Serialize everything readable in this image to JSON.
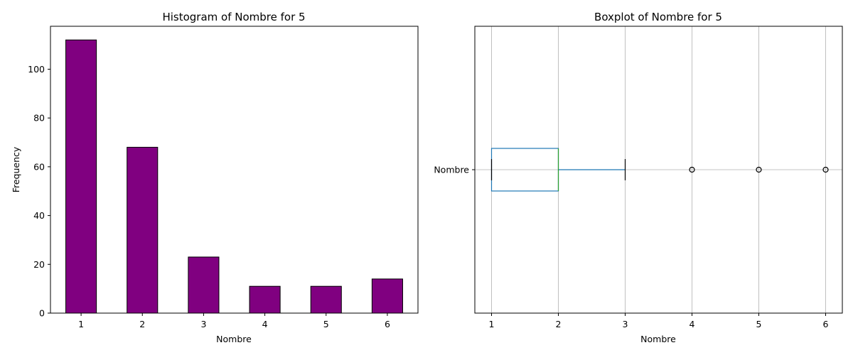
{
  "chart_data": [
    {
      "type": "bar",
      "title": "Histogram of Nombre for 5",
      "xlabel": "Nombre",
      "ylabel": "Frequency",
      "categories": [
        "1",
        "2",
        "3",
        "4",
        "5",
        "6"
      ],
      "values": [
        112,
        68,
        23,
        11,
        11,
        14
      ],
      "ylim": [
        0,
        117.6
      ],
      "yticks": [
        0,
        20,
        40,
        60,
        80,
        100
      ],
      "grid": false,
      "bar_color": "#800080",
      "edge_color": "#000000"
    },
    {
      "type": "boxplot",
      "title": "Boxplot of Nombre for 5",
      "xlabel": "Nombre",
      "category": "Nombre",
      "xlim": [
        0.75,
        6.25
      ],
      "xticks": [
        1,
        2,
        3,
        4,
        5,
        6
      ],
      "grid": true,
      "orientation": "horizontal",
      "whisker_low": 1,
      "q1": 1,
      "median": 2,
      "q3": 2,
      "whisker_high": 3,
      "outliers": [
        4,
        5,
        6
      ],
      "box_color": "#1f77b4",
      "median_color": "#2ca02c"
    }
  ]
}
